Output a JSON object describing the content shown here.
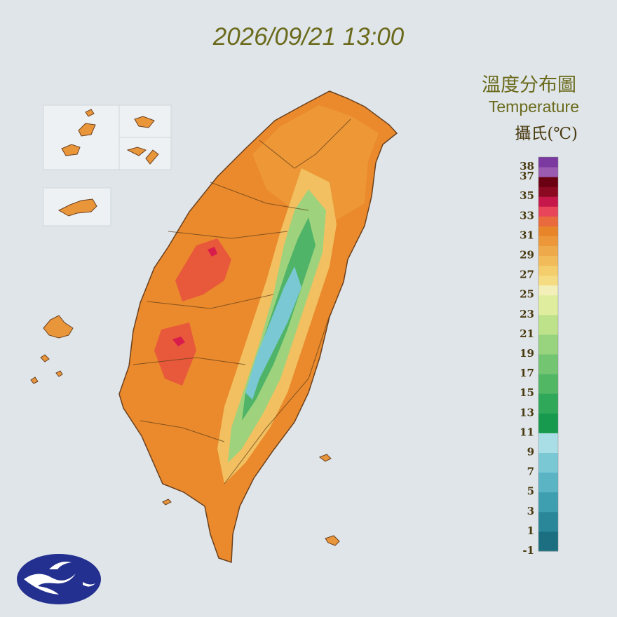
{
  "timestamp": "2026/09/21 13:00",
  "legend": {
    "title_zh": "溫度分布圖",
    "title_en": "Temperature",
    "unit": "攝氏(℃)",
    "ticks": [
      38,
      37,
      35,
      33,
      31,
      29,
      27,
      25,
      23,
      21,
      19,
      17,
      15,
      13,
      11,
      9,
      7,
      5,
      3,
      1,
      -1
    ],
    "range": [
      -1,
      39
    ],
    "colors": [
      "#1b6f80",
      "#1b6f80",
      "#2a879a",
      "#2a879a",
      "#3e9fb0",
      "#3e9fb0",
      "#5ab4c3",
      "#5ab4c3",
      "#7ac8d4",
      "#7ac8d4",
      "#a9dee6",
      "#a9dee6",
      "#179a4e",
      "#179a4e",
      "#2fa85a",
      "#2fa85a",
      "#52b765",
      "#52b765",
      "#74c572",
      "#74c572",
      "#98d37e",
      "#98d37e",
      "#bde28a",
      "#bde28a",
      "#dfee9e",
      "#dfee9e",
      "#f3efb9",
      "#f5dc82",
      "#f4cd6c",
      "#f2bb5a",
      "#eea94a",
      "#ec983a",
      "#e8852a",
      "#e96a3c",
      "#e8445a",
      "#c6174a",
      "#8b0a22",
      "#6b0012",
      "#9b5bb1",
      "#7a3aa0"
    ]
  }
}
